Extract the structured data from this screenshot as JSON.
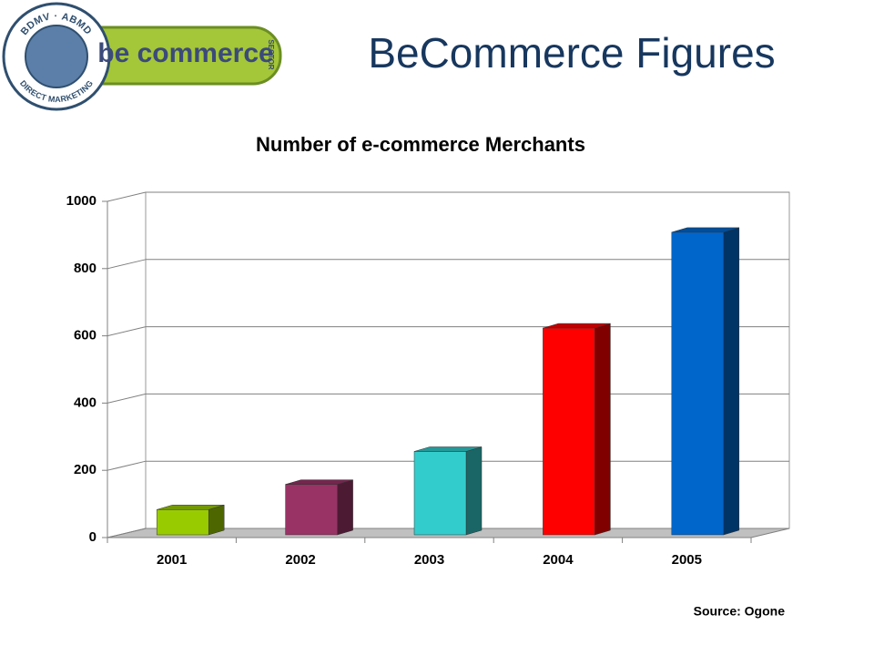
{
  "slide_title": "BeCommerce Figures",
  "logo": {
    "name": "be commerce",
    "sector": "SECTOR",
    "ring_top": "BDMV · ABMD",
    "ring_bottom": "DIRECT MARKETING"
  },
  "source": "Source: Ogone",
  "chart_data": {
    "type": "bar3d",
    "title": "Number of e-commerce Merchants",
    "categories": [
      "2001",
      "2002",
      "2003",
      "2004",
      "2005"
    ],
    "values": [
      75,
      150,
      248,
      615,
      900
    ],
    "colors": [
      "#99cc00",
      "#993366",
      "#33cccc",
      "#ff0000",
      "#0066cc"
    ],
    "ylim": [
      0,
      1000
    ],
    "yticks": [
      0,
      200,
      400,
      600,
      800,
      1000
    ],
    "grid": true
  }
}
